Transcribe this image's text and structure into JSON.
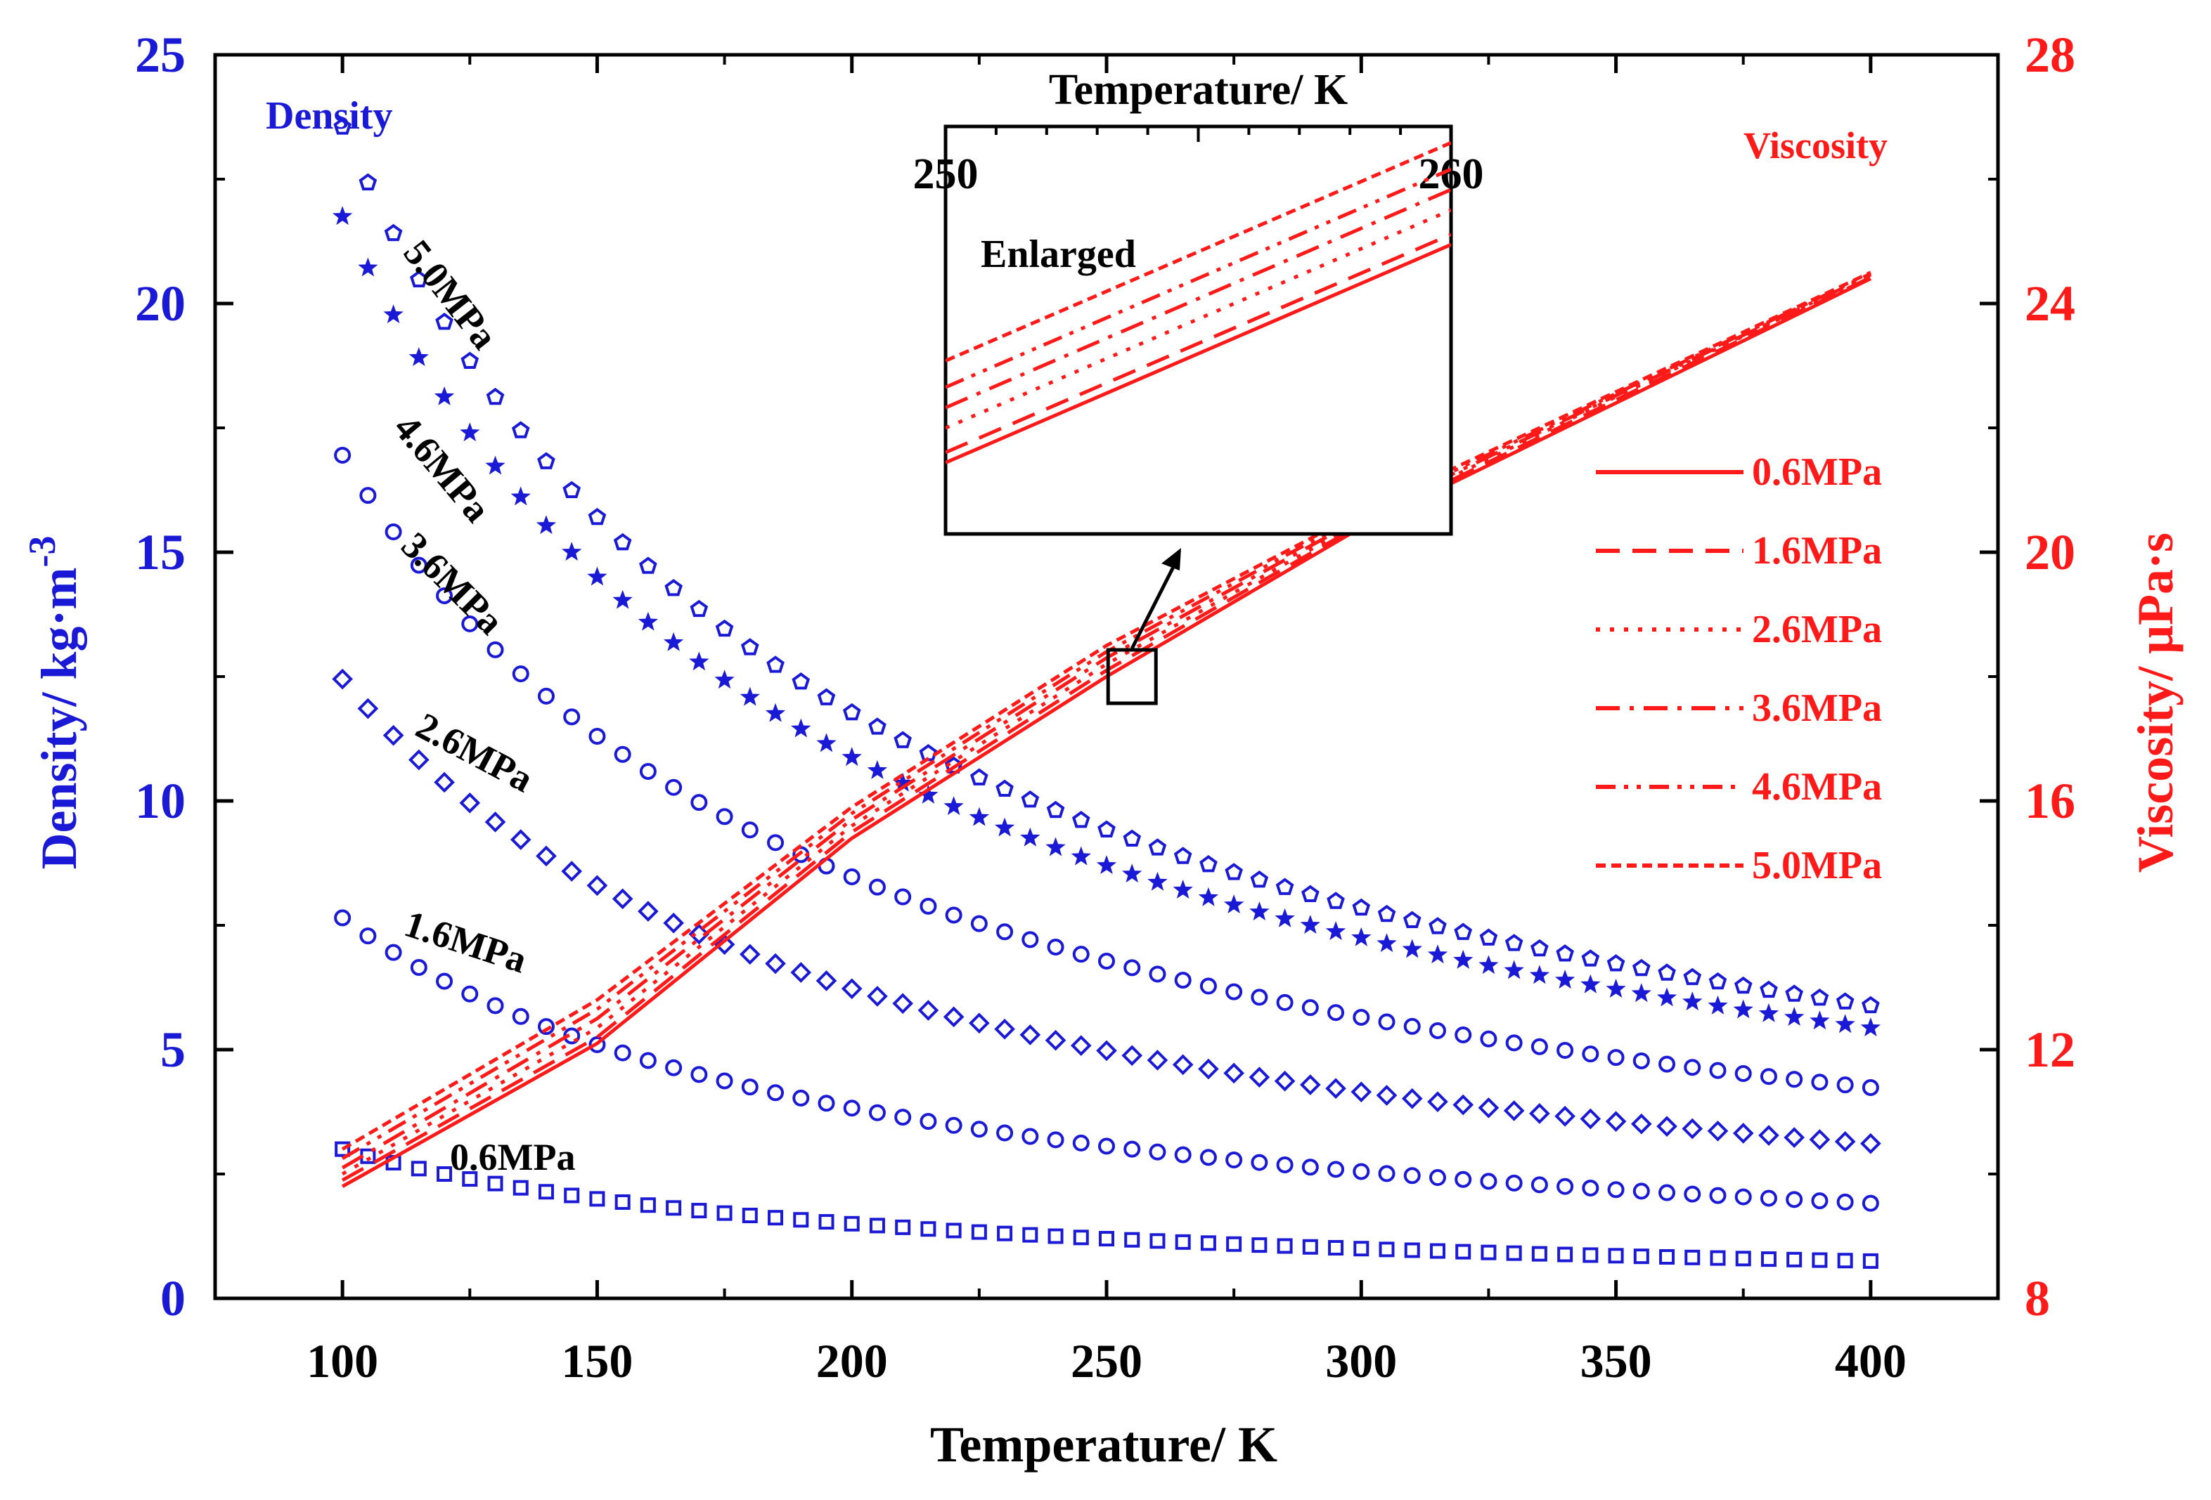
{
  "chart_data": {
    "type": "scatter",
    "xlabel": "Temperature/ K",
    "xlim": [
      75,
      425
    ],
    "xticks": [
      "100",
      "150",
      "200",
      "250",
      "300",
      "350",
      "400"
    ],
    "y_left": {
      "label": "Density/ kg·m",
      "label_sup": "-3",
      "ylim": [
        0,
        25
      ],
      "ticks": [
        "0",
        "5",
        "10",
        "15",
        "20",
        "25"
      ],
      "color": "#1a1ad6"
    },
    "y_right": {
      "label": "Viscosity/ μPa·s",
      "ylim": [
        8,
        28
      ],
      "ticks": [
        "8",
        "12",
        "16",
        "20",
        "24",
        "28"
      ],
      "color": "#ff1a1a"
    },
    "annotations": {
      "density": "Density",
      "viscosity": "Viscosity"
    },
    "density_series": [
      {
        "label": "0.6MPa",
        "marker": "square",
        "rho_ref": 1.0,
        "T_ref": 300
      },
      {
        "label": "1.6MPa",
        "marker": "circle",
        "rho_ref": 2.55,
        "T_ref": 300
      },
      {
        "label": "2.6MPa",
        "marker": "diamond",
        "rho_ref": 4.15,
        "T_ref": 300
      },
      {
        "label": "3.6MPa",
        "marker": "circle",
        "rho_ref": 5.65,
        "T_ref": 300
      },
      {
        "label": "4.6MPa",
        "marker": "star",
        "rho_ref": 7.25,
        "T_ref": 300
      },
      {
        "label": "5.0MPa",
        "marker": "pentagon",
        "rho_ref": 7.85,
        "T_ref": 300
      }
    ],
    "density_x_range": [
      100,
      400
    ],
    "density_x_step": 5,
    "viscosity_series": [
      {
        "name": "0.6MPa",
        "dash": "solid",
        "x": [
          100,
          150,
          200,
          250,
          300,
          350,
          400
        ],
        "y": [
          9.8,
          12.1,
          15.4,
          18.0,
          20.4,
          22.4,
          24.4
        ]
      },
      {
        "name": "1.6MPa",
        "dash": "dashed",
        "x": [
          100,
          150,
          200,
          250,
          300,
          350,
          400
        ],
        "y": [
          9.9,
          12.2,
          15.5,
          18.1,
          20.45,
          22.45,
          24.42
        ]
      },
      {
        "name": "2.6MPa",
        "dash": "dotted",
        "x": [
          100,
          150,
          200,
          250,
          300,
          350,
          400
        ],
        "y": [
          10.0,
          12.35,
          15.6,
          18.2,
          20.5,
          22.5,
          24.45
        ]
      },
      {
        "name": "3.6MPa",
        "dash": "dashdot",
        "x": [
          100,
          150,
          200,
          250,
          300,
          350,
          400
        ],
        "y": [
          10.1,
          12.5,
          15.7,
          18.3,
          20.55,
          22.52,
          24.46
        ]
      },
      {
        "name": "4.6MPa",
        "dash": "dashdotdot",
        "x": [
          100,
          150,
          200,
          250,
          300,
          350,
          400
        ],
        "y": [
          10.25,
          12.65,
          15.8,
          18.4,
          20.6,
          22.55,
          24.48
        ]
      },
      {
        "name": "5.0MPa",
        "dash": "shortdash",
        "x": [
          100,
          150,
          200,
          250,
          300,
          350,
          400
        ],
        "y": [
          10.4,
          12.8,
          15.9,
          18.5,
          20.65,
          22.58,
          24.5
        ]
      }
    ],
    "legend_position": "right",
    "inset": {
      "title": "Temperature/ K",
      "note": "Enlarged",
      "xlim": [
        250,
        260
      ],
      "xticks": [
        "250",
        "260"
      ],
      "y_base": [
        17.95,
        18.0,
        18.12,
        18.22,
        18.32,
        18.45
      ],
      "slope": 0.107
    },
    "zoom_box_center": [
      255,
      18.0
    ]
  }
}
